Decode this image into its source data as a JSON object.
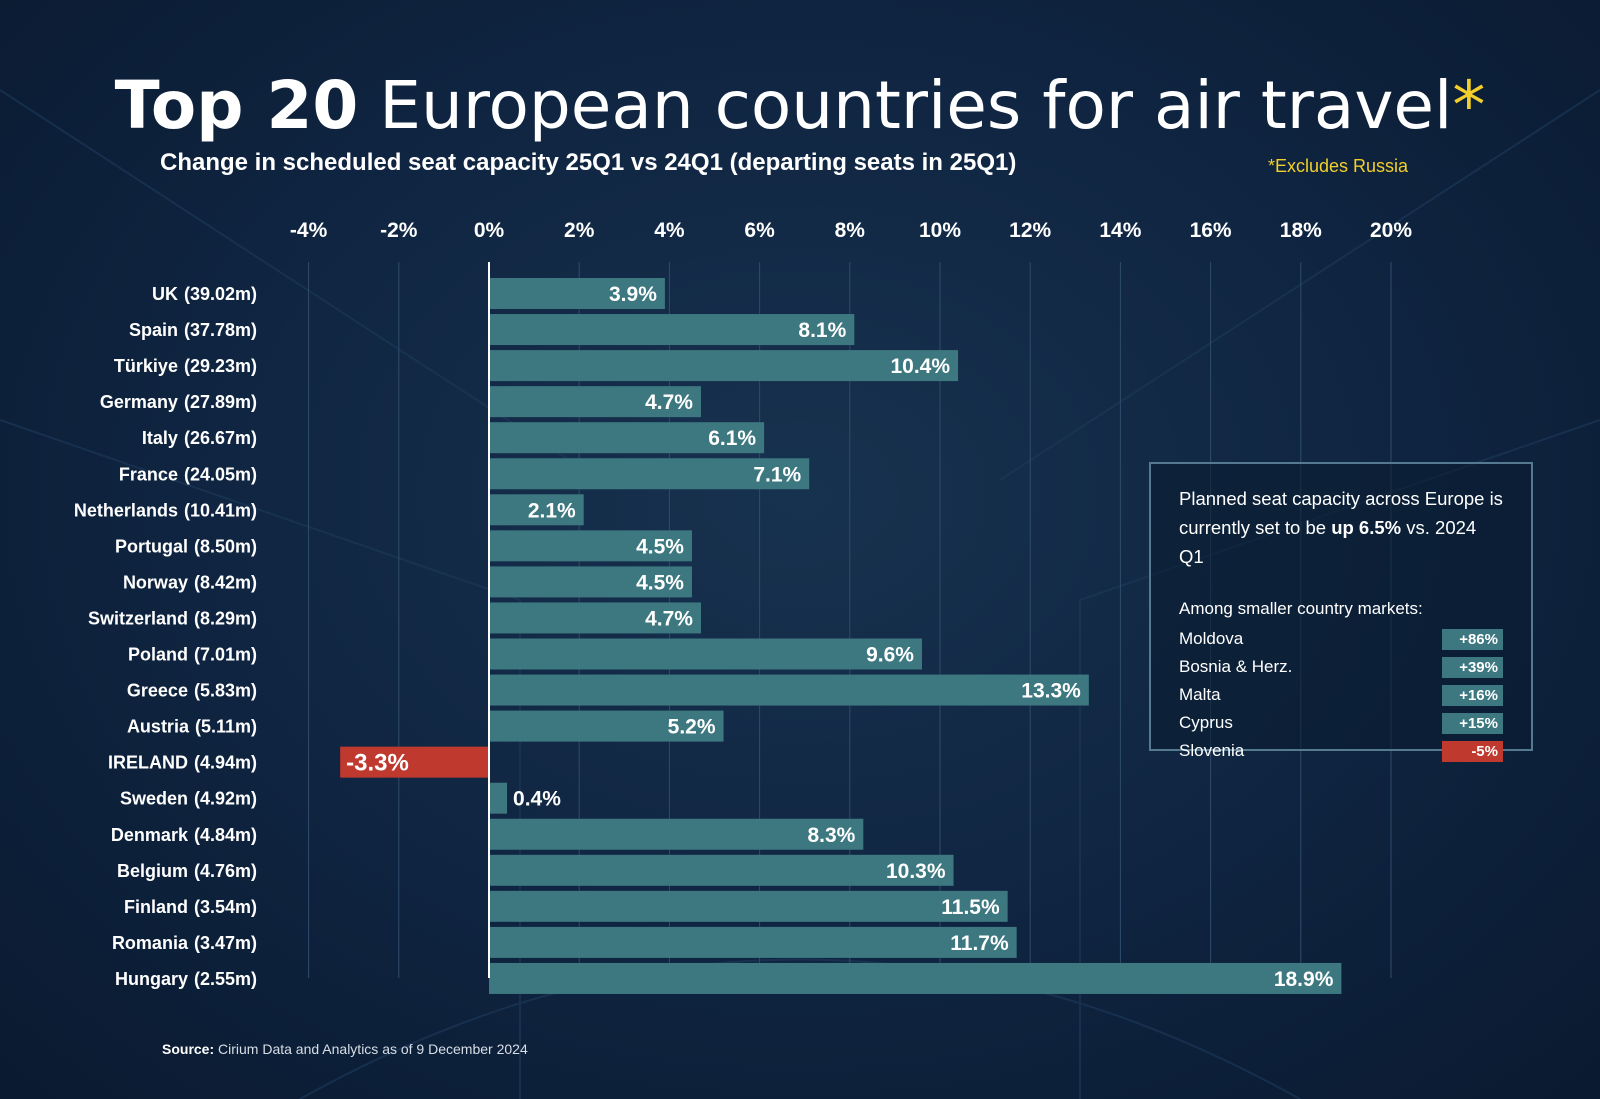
{
  "title": {
    "bold": "Top 20",
    "light": "European countries for air travel",
    "asterisk": "*"
  },
  "subtitle": "Change in scheduled seat capacity 25Q1 vs 24Q1 (departing seats in 25Q1)",
  "footnote": "*Excludes Russia",
  "colors": {
    "background": "#0f2440",
    "bar_positive": "#3d7880",
    "bar_negative": "#c0392f",
    "accent_yellow": "#f2cf2a",
    "note_border": "#55798e"
  },
  "chart_data": {
    "type": "bar",
    "orientation": "horizontal",
    "xlim": [
      -4,
      20
    ],
    "xticks": [
      "-4%",
      "-2%",
      "0%",
      "2%",
      "4%",
      "6%",
      "8%",
      "10%",
      "12%",
      "14%",
      "16%",
      "18%",
      "20%"
    ],
    "grid": true,
    "categories": [
      "UK",
      "Spain",
      "Türkiye",
      "Germany",
      "Italy",
      "France",
      "Netherlands",
      "Portugal",
      "Norway",
      "Switzerland",
      "Poland",
      "Greece",
      "Austria",
      "IRELAND",
      "Sweden",
      "Denmark",
      "Belgium",
      "Finland",
      "Romania",
      "Hungary"
    ],
    "seats": [
      "(39.02m)",
      "(37.78m)",
      "(29.23m)",
      "(27.89m)",
      "(26.67m)",
      "(24.05m)",
      "(10.41m)",
      "(8.50m)",
      "(8.42m)",
      "(8.29m)",
      "(7.01m)",
      "(5.83m)",
      "(5.11m)",
      "(4.94m)",
      "(4.92m)",
      "(4.84m)",
      "(4.76m)",
      "(3.54m)",
      "(3.47m)",
      "(2.55m)"
    ],
    "values": [
      3.9,
      8.1,
      10.4,
      4.7,
      6.1,
      7.1,
      2.1,
      4.5,
      4.5,
      4.7,
      9.6,
      13.3,
      5.2,
      -3.3,
      0.4,
      8.3,
      10.3,
      11.5,
      11.7,
      18.9
    ],
    "value_labels": [
      "3.9%",
      "8.1%",
      "10.4%",
      "4.7%",
      "6.1%",
      "7.1%",
      "2.1%",
      "4.5%",
      "4.5%",
      "4.7%",
      "9.6%",
      "13.3%",
      "5.2%",
      "-3.3%",
      "0.4%",
      "8.3%",
      "10.3%",
      "11.5%",
      "11.7%",
      "18.9%"
    ]
  },
  "note": {
    "line_pre": "Planned seat capacity across Europe is currently set to be ",
    "line_bold": "up 6.5%",
    "line_post": " vs. 2024 Q1",
    "sub_heading": "Among smaller country markets:",
    "markets": [
      {
        "name": "Moldova",
        "value": "+86%",
        "positive": true
      },
      {
        "name": "Bosnia & Herz.",
        "value": "+39%",
        "positive": true
      },
      {
        "name": "Malta",
        "value": "+16%",
        "positive": true
      },
      {
        "name": "Cyprus",
        "value": "+15%",
        "positive": true
      },
      {
        "name": "Slovenia",
        "value": "-5%",
        "positive": false
      }
    ]
  },
  "source": {
    "label": "Source:",
    "text": "Cirium Data and Analytics as of 9 December 2024"
  }
}
